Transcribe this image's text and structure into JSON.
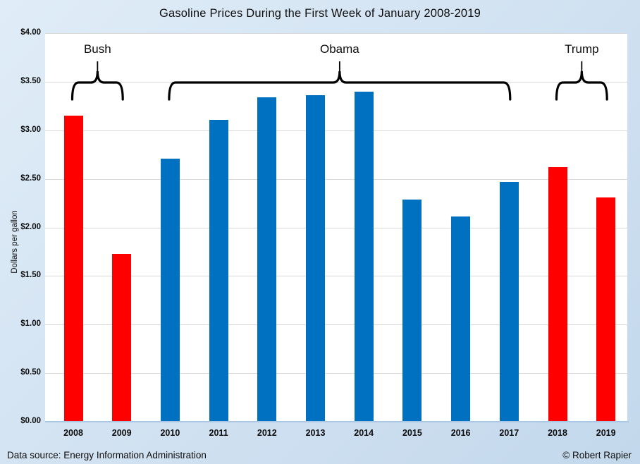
{
  "chart_data": {
    "type": "bar",
    "title": "Gasoline Prices During the First Week of January 2008-2019",
    "ylabel": "Dollars per gallon",
    "xlabel": "",
    "ylim": [
      0,
      4
    ],
    "grid": true,
    "legend": "none",
    "yticks": [
      {
        "value": 4.0,
        "label": "$4.00"
      },
      {
        "value": 3.5,
        "label": "$3.50"
      },
      {
        "value": 3.0,
        "label": "$3.00"
      },
      {
        "value": 2.5,
        "label": "$2.50"
      },
      {
        "value": 2.0,
        "label": "$2.00"
      },
      {
        "value": 1.5,
        "label": "$1.50"
      },
      {
        "value": 1.0,
        "label": "$1.00"
      },
      {
        "value": 0.5,
        "label": "$0.50"
      },
      {
        "value": 0.0,
        "label": "$0.00"
      }
    ],
    "categories": [
      "2008",
      "2009",
      "2010",
      "2011",
      "2012",
      "2013",
      "2014",
      "2015",
      "2016",
      "2017",
      "2018",
      "2019"
    ],
    "values": [
      3.15,
      1.73,
      2.71,
      3.11,
      3.34,
      3.36,
      3.4,
      2.29,
      2.11,
      2.47,
      2.62,
      2.31
    ],
    "parties": [
      "republican",
      "republican",
      "democrat",
      "democrat",
      "democrat",
      "democrat",
      "democrat",
      "democrat",
      "democrat",
      "democrat",
      "republican",
      "republican"
    ],
    "party_colors": {
      "republican": "#fe0000",
      "democrat": "#0070c0"
    },
    "annotations": [
      {
        "label": "Bush",
        "start_index": 0,
        "end_index": 1
      },
      {
        "label": "Obama",
        "start_index": 2,
        "end_index": 9
      },
      {
        "label": "Trump",
        "start_index": 10,
        "end_index": 11
      }
    ]
  },
  "footer": {
    "source": "Data source: Energy Information Administration",
    "credit": "© Robert Rapier"
  }
}
